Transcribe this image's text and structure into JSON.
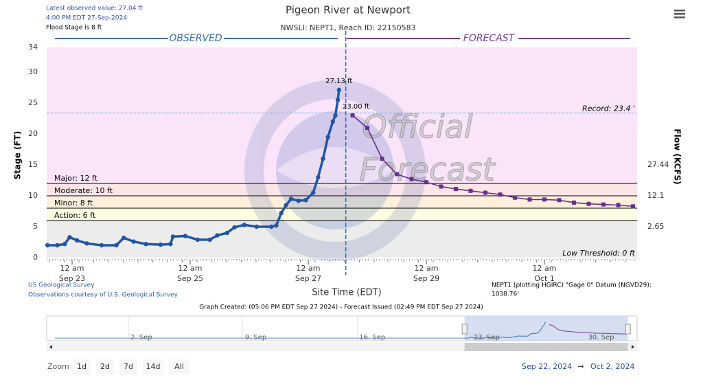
{
  "header": {
    "latest": "Latest observed value: 27.04 ft",
    "time": "4:00 PM EDT 27-Sep-2024",
    "flood": "Flood Stage is 8 ft"
  },
  "chart_data": {
    "type": "line",
    "title": "Pigeon River at Newport",
    "subtitle": "NWSLI: NEPT1, Reach ID: 22150583",
    "sections": [
      "OBSERVED",
      "FORECAST"
    ],
    "watermark": [
      "Official",
      "Forecast"
    ],
    "y_label": "Stage (FT)",
    "y2_label": "Flow (KCFS)",
    "x_label": "Site Time (EDT)",
    "xlim": [
      "2024-09-22T13:40",
      "2024-10-02T13:40"
    ],
    "xticks": [
      {
        "value": "2024-09-23T00:00",
        "label": "12 am",
        "date": "Sep 23"
      },
      {
        "value": "2024-09-25T00:00",
        "label": "12 am",
        "date": "Sep 25"
      },
      {
        "value": "2024-09-27T00:00",
        "label": "12 am",
        "date": "Sep 27"
      },
      {
        "value": "2024-09-29T00:00",
        "label": "12 am",
        "date": "Sep 29"
      },
      {
        "value": "2024-10-01T00:00",
        "label": "12 am",
        "date": "Oct 1"
      }
    ],
    "ylim": [
      0,
      34
    ],
    "yticks": [
      0,
      5,
      10,
      15,
      20,
      25,
      30,
      34
    ],
    "y2ticks": [
      27.44,
      12.1,
      2.65
    ],
    "y2_stage": [
      15,
      10,
      5
    ],
    "thresholds": [
      {
        "label": "Major: 12 ft",
        "value": 12,
        "color": "#f9e4fa"
      },
      {
        "label": "Moderate: 10 ft",
        "value": 10,
        "color": "#fde4e6"
      },
      {
        "label": "Minor: 8 ft",
        "value": 8,
        "color": "#fff0de"
      },
      {
        "label": "Action: 6 ft",
        "value": 6,
        "color": "#fffde2"
      },
      {
        "label": "Low Threshold: 0 ft",
        "value": 0,
        "color": "#ececec"
      }
    ],
    "record": {
      "label": "Record: 23.4 '",
      "value": 23.4
    },
    "series": [
      {
        "name": "Observed",
        "color": "#2155a5",
        "x": [
          "2024-09-22T14:00",
          "2024-09-22T18:00",
          "2024-09-22T21:00",
          "2024-09-22T23:00",
          "2024-09-23T02:00",
          "2024-09-23T06:00",
          "2024-09-23T12:00",
          "2024-09-23T18:00",
          "2024-09-23T21:00",
          "2024-09-24T01:00",
          "2024-09-24T06:00",
          "2024-09-24T12:00",
          "2024-09-24T16:00",
          "2024-09-24T17:00",
          "2024-09-24T22:00",
          "2024-09-25T03:00",
          "2024-09-25T08:00",
          "2024-09-25T11:00",
          "2024-09-25T15:00",
          "2024-09-25T18:00",
          "2024-09-25T22:00",
          "2024-09-26T03:00",
          "2024-09-26T09:00",
          "2024-09-26T11:00",
          "2024-09-26T13:00",
          "2024-09-26T15:00",
          "2024-09-26T17:00",
          "2024-09-26T20:00",
          "2024-09-26T23:00",
          "2024-09-27T02:00",
          "2024-09-27T04:00",
          "2024-09-27T06:00",
          "2024-09-27T08:00",
          "2024-09-27T10:00",
          "2024-09-27T11:00",
          "2024-09-27T12:00",
          "2024-09-27T12:30"
        ],
        "values": [
          2.0,
          2.0,
          2.2,
          3.3,
          2.8,
          2.3,
          2.0,
          2.0,
          3.2,
          2.6,
          2.2,
          2.1,
          2.2,
          3.4,
          3.5,
          2.9,
          2.9,
          3.6,
          4.0,
          4.9,
          5.3,
          5.0,
          5.0,
          5.2,
          7.2,
          8.5,
          9.5,
          9.2,
          9.3,
          10.5,
          13.0,
          16.0,
          19.5,
          22.0,
          23.0,
          25.5,
          27.13
        ],
        "value_labels": [
          null,
          null,
          null,
          null,
          null,
          null,
          null,
          null,
          null,
          null,
          null,
          null,
          null,
          null,
          null,
          null,
          null,
          null,
          null,
          null,
          null,
          null,
          null,
          null,
          null,
          null,
          null,
          null,
          null,
          null,
          null,
          null,
          null,
          null,
          null,
          null,
          "27.13 ft"
        ]
      },
      {
        "name": "Forecast",
        "color": "#6a2d91",
        "x": [
          "2024-09-27T18:00",
          "2024-09-28T00:00",
          "2024-09-28T06:00",
          "2024-09-28T12:00",
          "2024-09-28T18:00",
          "2024-09-29T00:00",
          "2024-09-29T06:00",
          "2024-09-29T12:00",
          "2024-09-29T18:00",
          "2024-09-30T00:00",
          "2024-09-30T06:00",
          "2024-09-30T12:00",
          "2024-09-30T18:00",
          "2024-10-01T00:00",
          "2024-10-01T06:00",
          "2024-10-01T12:00",
          "2024-10-01T18:00",
          "2024-10-02T00:00",
          "2024-10-02T06:00",
          "2024-10-02T12:00"
        ],
        "values": [
          23.0,
          21.0,
          16.0,
          13.5,
          12.7,
          12.2,
          11.5,
          11.1,
          10.8,
          10.5,
          10.2,
          9.7,
          9.4,
          9.4,
          9.3,
          8.9,
          8.7,
          8.6,
          8.5,
          8.3
        ],
        "value_labels": [
          "23.00 ft",
          null,
          null,
          null,
          null,
          null,
          null,
          null,
          null,
          null,
          null,
          null,
          null,
          null,
          null,
          null,
          null,
          null,
          null,
          null
        ]
      }
    ],
    "navigator": {
      "xlim": [
        "2024-08-28T12:00",
        "2024-10-02T14:00"
      ],
      "ticks": [
        {
          "value": "2024-09-02T00:00",
          "label": "2. Sep"
        },
        {
          "value": "2024-09-09T00:00",
          "label": "9. Sep"
        },
        {
          "value": "2024-09-16T00:00",
          "label": "16. Sep"
        },
        {
          "value": "2024-09-23T00:00",
          "label": "23. Sep"
        },
        {
          "value": "2024-09-30T00:00",
          "label": "30. Sep"
        }
      ]
    }
  },
  "footer": {
    "source": "US Geological Survey",
    "courtesy": "Observations courtesy of U.S. Geological Survey",
    "datum": [
      "NEPT1 (plotting HGIRC) \"Gage 0\" Datum (NGVD29):",
      "1038.76'"
    ],
    "created": "Graph Created: (05:06 PM EDT Sep 27 2024) - Forecast Issued (02:49 PM EDT Sep 27 2024)"
  },
  "controls": {
    "zoom": "Zoom",
    "buttons": [
      "1d",
      "2d",
      "7d",
      "14d",
      "All"
    ],
    "from": "Sep 22, 2024",
    "arrow": "→",
    "to": "Oct 2, 2024"
  }
}
